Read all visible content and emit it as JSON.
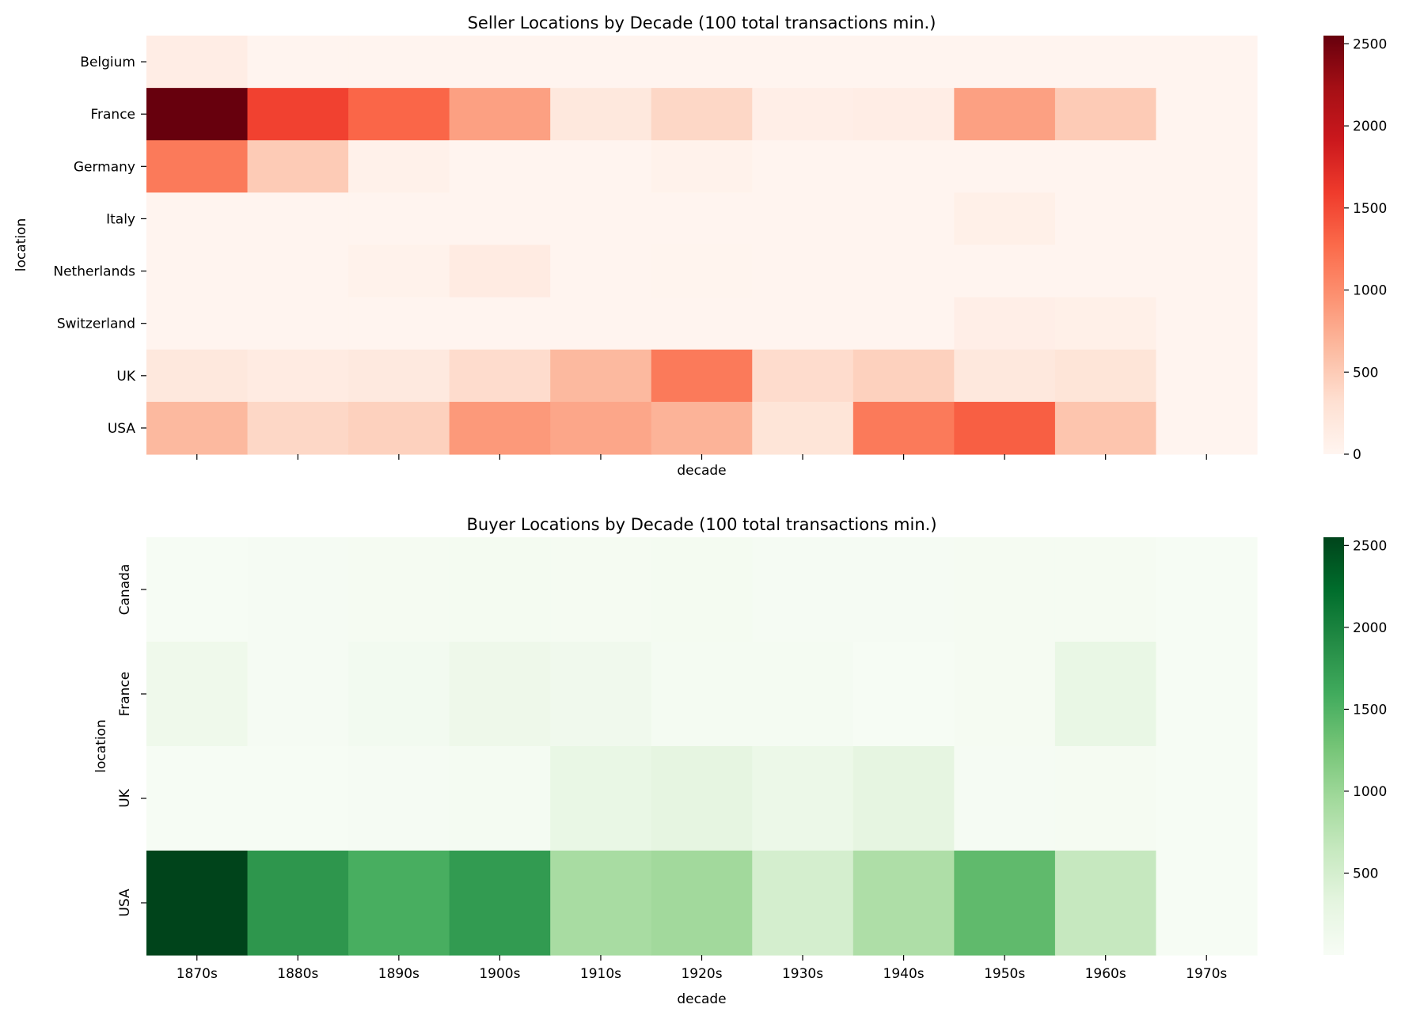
{
  "chart_data": [
    {
      "type": "heatmap",
      "title": "Seller Locations by Decade (100 total transactions min.)",
      "xlabel": "decade",
      "ylabel": "location",
      "colormap": "Reds",
      "colors": [
        "#fff5f0",
        "#fee0d2",
        "#fcbba1",
        "#fc9272",
        "#fb6a4a",
        "#ef3b2c",
        "#cb181d",
        "#a50f15",
        "#67000d"
      ],
      "vmin": 0,
      "vmax": 2550,
      "colorbar_ticks": [
        "0",
        "500",
        "1000",
        "1500",
        "2000",
        "2500"
      ],
      "x_tick_labels_visible": false,
      "categories": [
        "1870s",
        "1880s",
        "1890s",
        "1900s",
        "1910s",
        "1920s",
        "1930s",
        "1940s",
        "1950s",
        "1960s",
        "1970s"
      ],
      "rows": [
        "Belgium",
        "France",
        "Germany",
        "Italy",
        "Netherlands",
        "Switzerland",
        "UK",
        "USA"
      ],
      "values": [
        [
          120,
          10,
          10,
          10,
          10,
          10,
          10,
          10,
          10,
          10,
          10
        ],
        [
          2550,
          1550,
          1300,
          850,
          200,
          400,
          100,
          120,
          850,
          500,
          10
        ],
        [
          1150,
          500,
          60,
          10,
          10,
          50,
          10,
          10,
          10,
          10,
          10
        ],
        [
          10,
          10,
          10,
          10,
          10,
          10,
          10,
          10,
          80,
          10,
          10
        ],
        [
          10,
          10,
          50,
          150,
          10,
          20,
          10,
          10,
          10,
          10,
          10
        ],
        [
          10,
          10,
          10,
          10,
          10,
          10,
          10,
          10,
          100,
          80,
          10
        ],
        [
          200,
          150,
          180,
          350,
          650,
          1150,
          350,
          450,
          200,
          250,
          10
        ],
        [
          650,
          400,
          450,
          900,
          800,
          700,
          250,
          1150,
          1350,
          550,
          10
        ]
      ]
    },
    {
      "type": "heatmap",
      "title": "Buyer Locations by Decade (100 total transactions min.)",
      "xlabel": "decade",
      "ylabel": "location",
      "colormap": "Greens",
      "colors": [
        "#f7fcf5",
        "#e5f5e0",
        "#c7e9c0",
        "#a1d99b",
        "#74c476",
        "#41ab5d",
        "#238b45",
        "#006d2c",
        "#00441b"
      ],
      "vmin": 0,
      "vmax": 2550,
      "colorbar_ticks": [
        "500",
        "1000",
        "1500",
        "2000",
        "2500"
      ],
      "x_tick_labels_visible": true,
      "categories": [
        "1870s",
        "1880s",
        "1890s",
        "1900s",
        "1910s",
        "1920s",
        "1930s",
        "1940s",
        "1950s",
        "1960s",
        "1970s"
      ],
      "rows": [
        "Canada",
        "France",
        "UK",
        "USA"
      ],
      "values": [
        [
          20,
          30,
          40,
          60,
          40,
          60,
          30,
          30,
          40,
          40,
          10
        ],
        [
          150,
          30,
          80,
          160,
          120,
          50,
          50,
          10,
          40,
          250,
          10
        ],
        [
          10,
          10,
          30,
          50,
          250,
          300,
          200,
          300,
          30,
          40,
          10
        ],
        [
          2550,
          1800,
          1550,
          1750,
          900,
          950,
          500,
          850,
          1400,
          650,
          10
        ]
      ]
    }
  ]
}
